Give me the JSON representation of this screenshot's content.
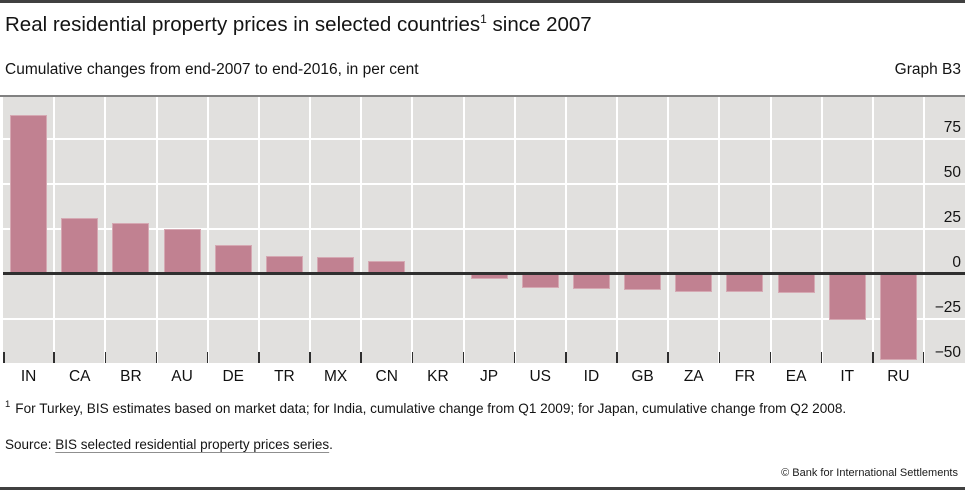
{
  "header": {
    "title": "Real residential property prices in selected countries",
    "title_footnote_marker": "1",
    "title_suffix": " since 2007",
    "subtitle": "Cumulative changes from end-2007 to end-2016, in per cent",
    "graph_label": "Graph B3"
  },
  "chart_data": {
    "type": "bar",
    "title": "Real residential property prices in selected countries since 2007",
    "subtitle": "Cumulative changes from end-2007 to end-2016, in per cent",
    "categories": [
      "IN",
      "CA",
      "BR",
      "AU",
      "DE",
      "TR",
      "MX",
      "CN",
      "KR",
      "JP",
      "US",
      "ID",
      "GB",
      "ZA",
      "FR",
      "EA",
      "IT",
      "RU"
    ],
    "values": [
      88,
      31,
      28,
      25,
      16,
      10,
      9,
      7,
      1,
      -3,
      -8,
      -8.5,
      -9,
      -10,
      -10,
      -11,
      -26,
      -48
    ],
    "unit": "per cent",
    "ylim": [
      -50,
      97.5
    ],
    "yticks": [
      75,
      50,
      25,
      0,
      -25,
      -50
    ],
    "ytick_labels": [
      "75",
      "50",
      "25",
      "0",
      "−25",
      "−50"
    ],
    "grid": true,
    "legend": "none",
    "axis_side": "right",
    "bar_color": "#c18191",
    "bar_border_color": "#d5a9b3",
    "plot_bg": "#e1e0de",
    "zero_line_color": "#2f2f2f"
  },
  "footnote": {
    "marker": "1",
    "text": "For Turkey, BIS estimates based on market data; for India, cumulative change from Q1 2009; for Japan, cumulative change from Q2 2008."
  },
  "source": {
    "prefix": "Source: ",
    "link_text": "BIS selected residential property prices series",
    "suffix": "."
  },
  "footer": {
    "copyright": "© Bank for International Settlements"
  }
}
